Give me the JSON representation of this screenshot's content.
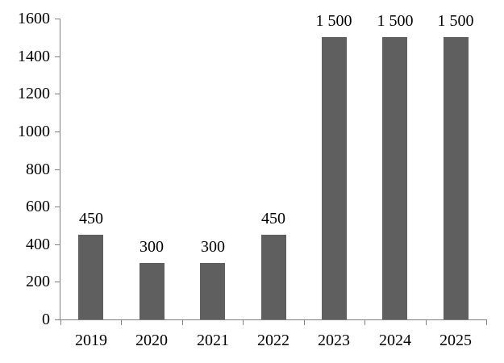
{
  "chart_data": {
    "type": "bar",
    "categories": [
      "2019",
      "2020",
      "2021",
      "2022",
      "2023",
      "2024",
      "2025"
    ],
    "values": [
      450,
      300,
      300,
      450,
      1500,
      1500,
      1500
    ],
    "data_labels": [
      "450",
      "300",
      "300",
      "450",
      "1 500",
      "1 500",
      "1 500"
    ],
    "y_ticks": [
      0,
      200,
      400,
      600,
      800,
      1000,
      1200,
      1400,
      1600
    ],
    "y_tick_labels": [
      "0",
      "200",
      "400",
      "600",
      "800",
      "1000",
      "1200",
      "1400",
      "1600"
    ],
    "ylim": [
      0,
      1600
    ],
    "grid": false,
    "legend": "none",
    "bar_color": "#5f5f5f",
    "axis_color": "#808080",
    "text_color": "#000000"
  }
}
